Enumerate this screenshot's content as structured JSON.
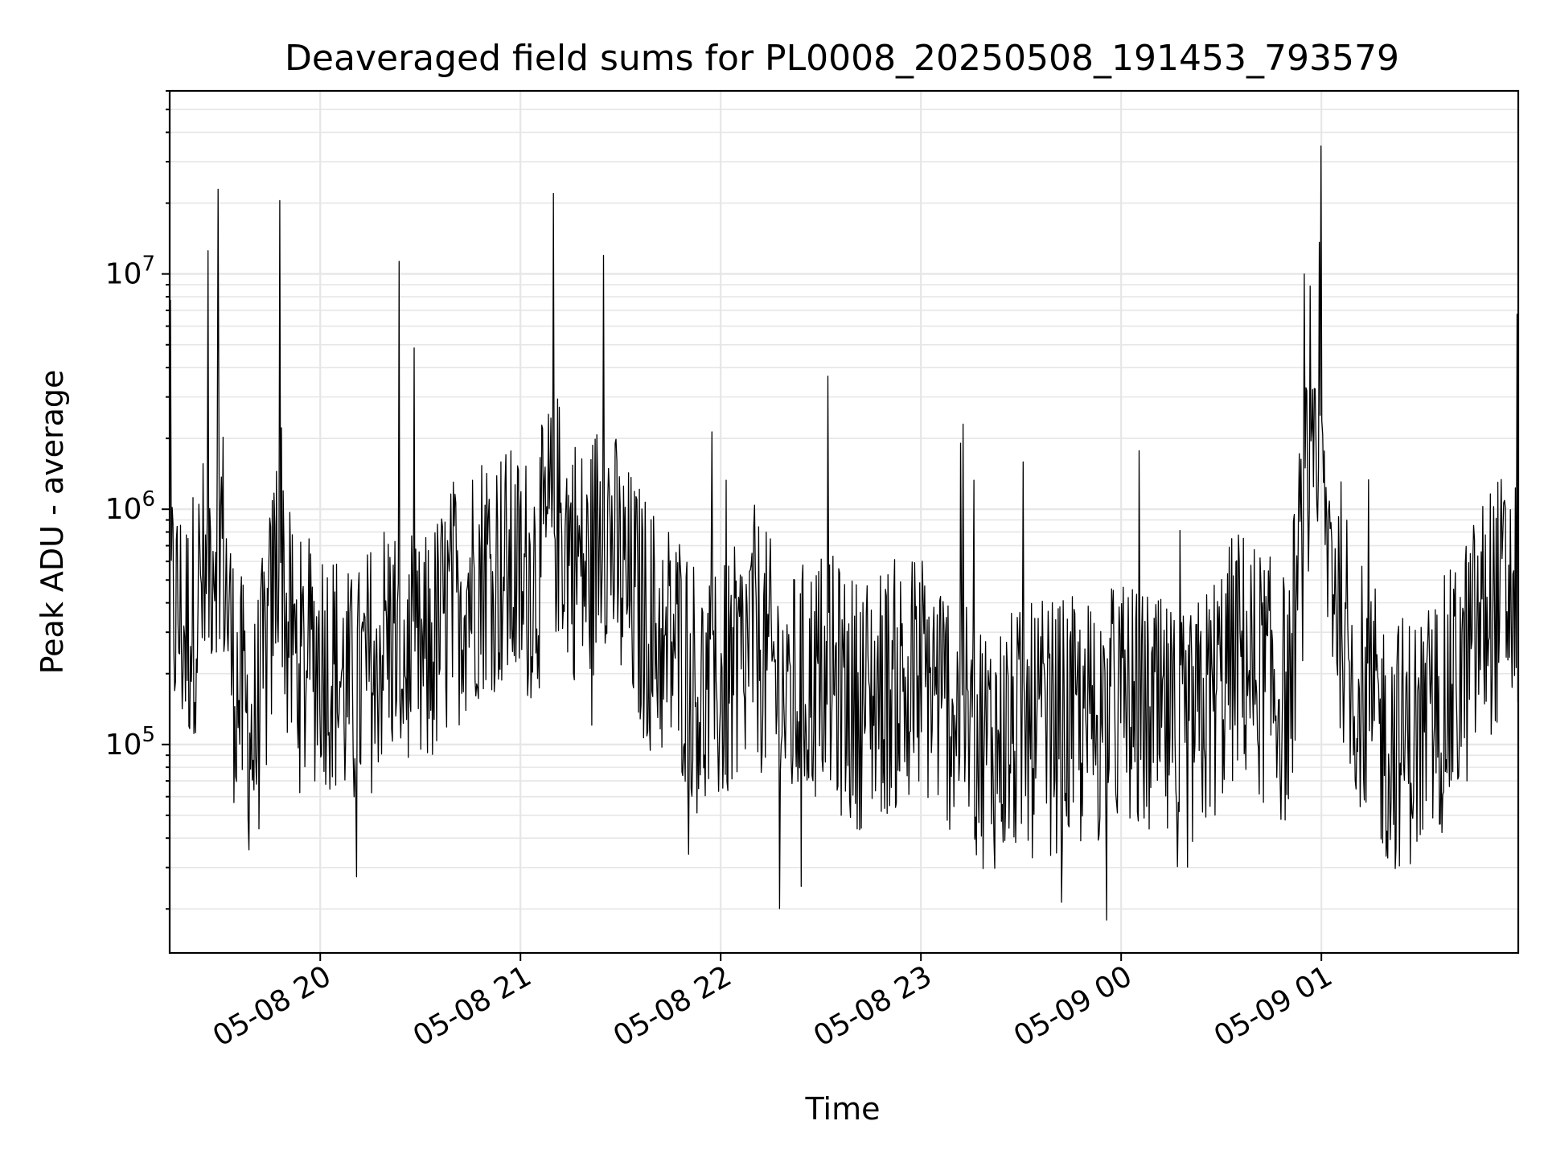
{
  "chart_data": {
    "type": "line",
    "title": "Deaveraged field sums for PL0008_20250508_191453_793579",
    "xlabel": "Time",
    "ylabel": "Peak ADU - average",
    "yscale": "log",
    "xlim": [
      "2025-05-08 19:14:53",
      "2025-05-09 01:59:00"
    ],
    "ylim": [
      13000,
      60000000
    ],
    "grid": true,
    "x_tick_labels": [
      "05-08 20",
      "05-08 21",
      "05-08 22",
      "05-08 23",
      "05-09 00",
      "05-09 01"
    ],
    "y_tick_labels": [
      {
        "base": "10",
        "exp": "5"
      },
      {
        "base": "10",
        "exp": "6"
      },
      {
        "base": "10",
        "exp": "7"
      }
    ],
    "line_color": "#000000",
    "series": [
      {
        "values_description": "noisy time series, ~1 sample per 15 s",
        "x": [
          "2025-05-08 19:15",
          "2025-05-08 19:20",
          "2025-05-08 19:25",
          "2025-05-08 19:30",
          "2025-05-08 19:34",
          "2025-05-08 19:40",
          "2025-05-08 19:45",
          "2025-05-08 19:48",
          "2025-05-08 19:50",
          "2025-05-08 19:55",
          "2025-05-08 20:00",
          "2025-05-08 20:05",
          "2025-05-08 20:10",
          "2025-05-08 20:20",
          "2025-05-08 20:30",
          "2025-05-08 20:40",
          "2025-05-08 20:50",
          "2025-05-08 21:00",
          "2025-05-08 21:05",
          "2025-05-08 21:10",
          "2025-05-08 21:20",
          "2025-05-08 21:25",
          "2025-05-08 21:30",
          "2025-05-08 21:40",
          "2025-05-08 21:48",
          "2025-05-08 21:55",
          "2025-05-08 22:05",
          "2025-05-08 22:10",
          "2025-05-08 22:20",
          "2025-05-08 22:30",
          "2025-05-08 22:40",
          "2025-05-08 23:00",
          "2025-05-08 23:20",
          "2025-05-08 23:40",
          "2025-05-08 23:50",
          "2025-05-09 00:00",
          "2025-05-09 00:20",
          "2025-05-09 00:35",
          "2025-05-09 00:50",
          "2025-05-09 00:55",
          "2025-05-09 01:00",
          "2025-05-09 01:10",
          "2025-05-09 01:20",
          "2025-05-09 01:30",
          "2025-05-09 01:40",
          "2025-05-09 01:50",
          "2025-05-09 01:58"
        ],
        "values": [
          400000,
          300000,
          500000,
          1500000,
          200000,
          100000,
          300000,
          20500000,
          300000,
          200000,
          250000,
          200000,
          150000,
          300000,
          200000,
          400000,
          600000,
          500000,
          550000,
          22000000,
          500000,
          12000000,
          500000,
          300000,
          250000,
          150000,
          200000,
          300000,
          150000,
          200000,
          150000,
          200000,
          100000,
          120000,
          120000,
          150000,
          100000,
          250000,
          150000,
          10000000,
          35000000,
          200000,
          100000,
          110000,
          170000,
          380000,
          450000
        ]
      }
    ]
  }
}
